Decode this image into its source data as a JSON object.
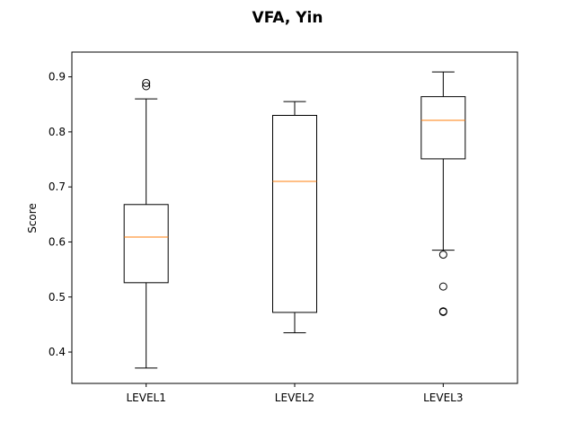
{
  "chart_data": {
    "type": "box",
    "title": "VFA, Yin",
    "xlabel": "",
    "ylabel": "Score",
    "categories": [
      "LEVEL1",
      "LEVEL2",
      "LEVEL3"
    ],
    "ylim": [
      0.343,
      0.945
    ],
    "yticks": [
      0.4,
      0.5,
      0.6,
      0.7,
      0.8,
      0.9
    ],
    "ytick_labels": [
      "0.4",
      "0.5",
      "0.6",
      "0.7",
      "0.8",
      "0.9"
    ],
    "grid": false,
    "boxes": [
      {
        "category": "LEVEL1",
        "whisker_low": 0.371,
        "q1": 0.526,
        "median": 0.609,
        "q3": 0.668,
        "whisker_high": 0.86,
        "outliers": [
          0.883,
          0.889
        ]
      },
      {
        "category": "LEVEL2",
        "whisker_low": 0.435,
        "q1": 0.472,
        "median": 0.71,
        "q3": 0.83,
        "whisker_high": 0.855,
        "outliers": []
      },
      {
        "category": "LEVEL3",
        "whisker_low": 0.585,
        "q1": 0.751,
        "median": 0.821,
        "q3": 0.864,
        "whisker_high": 0.909,
        "outliers": [
          0.577,
          0.519,
          0.474,
          0.473
        ]
      }
    ],
    "colors": {
      "box": "#000000",
      "median": "#ff7f0e",
      "outlier": "#000000"
    }
  }
}
